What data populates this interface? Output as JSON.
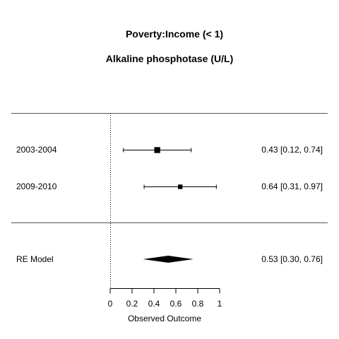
{
  "chart_data": {
    "type": "forest",
    "title": "Poverty:Income (< 1)",
    "subtitle": "Alkaline phosphotase (U/L)",
    "xlabel": "Observed Outcome",
    "xlim": [
      0,
      1
    ],
    "xticks": [
      "0",
      "0.2",
      "0.4",
      "0.6",
      "0.8",
      "1"
    ],
    "reference_line": 0,
    "studies": [
      {
        "label": "2003-2004",
        "estimate": 0.43,
        "ci_lower": 0.12,
        "ci_upper": 0.74,
        "summary_text": "0.43 [0.12, 0.74]",
        "weight": 0.7
      },
      {
        "label": "2009-2010",
        "estimate": 0.64,
        "ci_lower": 0.31,
        "ci_upper": 0.97,
        "summary_text": "0.64 [0.31, 0.97]",
        "weight": 0.3
      }
    ],
    "summary": {
      "label": "RE Model",
      "estimate": 0.53,
      "ci_lower": 0.3,
      "ci_upper": 0.76,
      "summary_text": "0.53 [0.30, 0.76]"
    },
    "colors": {
      "marks": "#000000",
      "rules": "#555555"
    }
  }
}
